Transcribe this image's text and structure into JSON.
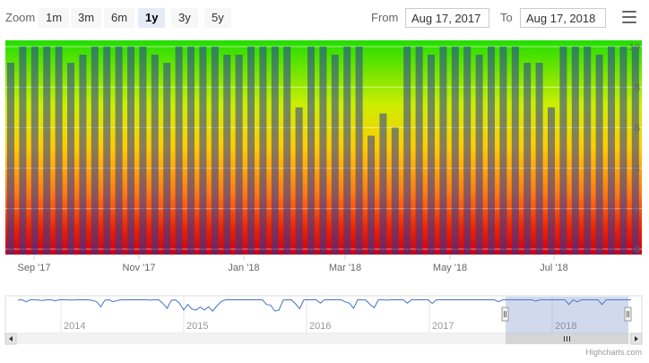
{
  "toolbar": {
    "zoom_label": "Zoom",
    "buttons": [
      "1m",
      "3m",
      "6m",
      "1y",
      "3y",
      "5y"
    ],
    "selected": "1y",
    "from_label": "From",
    "from_value": "Aug 17, 2017",
    "to_label": "To",
    "to_value": "Aug 17, 2018"
  },
  "credits": "Highcharts.com",
  "colors": {
    "bar": "rgba(40,60,160,0.55)",
    "gradient": [
      "#22dd00",
      "#ccee00",
      "#ffcc00",
      "#ff7711",
      "#ee2200",
      "#cc0011"
    ],
    "navigator_line": "#4572c4",
    "navigator_mask": "rgba(102,133,194,0.3)"
  },
  "chart_data": {
    "type": "bar",
    "y_ticks": [
      0,
      2,
      4,
      6,
      8,
      10
    ],
    "ylim": [
      0,
      10
    ],
    "x_ticks": [
      "Sep '17",
      "Nov '17",
      "Jan '18",
      "Mar '18",
      "May '18",
      "Jul '18"
    ],
    "values": [
      9.2,
      10,
      10,
      10,
      10,
      9.2,
      9.6,
      10,
      10,
      10,
      10,
      10,
      9.6,
      9.2,
      10,
      10,
      10,
      10,
      9.6,
      9.6,
      10,
      10,
      10,
      10,
      7.0,
      10,
      10,
      9.6,
      10,
      10,
      5.6,
      6.7,
      6.0,
      10,
      10,
      9.6,
      10,
      10,
      10,
      9.6,
      10,
      10,
      10,
      9.2,
      9.2,
      7.0,
      10,
      10,
      10,
      9.6,
      10,
      10,
      10
    ],
    "navigator": {
      "x_labels": [
        "2014",
        "2015",
        "2016",
        "2017",
        "2018"
      ],
      "series": [
        9.5,
        9.6,
        9.0,
        9.6,
        9.6,
        9.5,
        9.4,
        9.6,
        9.6,
        9.3,
        9.6,
        9.6,
        9.6,
        9.5,
        9.6,
        9.6,
        9.6,
        9.6,
        9.4,
        9.0,
        7.5,
        9.5,
        9.6,
        9.0,
        9.4,
        9.6,
        9.6,
        9.6,
        9.6,
        9.6,
        9.6,
        9.6,
        9.5,
        9.6,
        9.6,
        8.5,
        7.0,
        9.4,
        9.6,
        8.6,
        6.5,
        8.2,
        6.8,
        6.5,
        7.4,
        6.5,
        7.5,
        6.2,
        7.7,
        9.0,
        9.6,
        9.6,
        9.6,
        9.6,
        9.6,
        9.6,
        9.6,
        9.6,
        9.6,
        9.6,
        8.2,
        8.0,
        6.2,
        6.5,
        9.5,
        9.6,
        9.6,
        8.4,
        6.9,
        9.6,
        9.6,
        9.6,
        9.6,
        8.6,
        9.6,
        9.6,
        9.6,
        9.6,
        9.6,
        9.0,
        8.6,
        7.0,
        9.6,
        9.6,
        9.5,
        8.2,
        7.2,
        9.6,
        9.6,
        9.5,
        9.6,
        9.6,
        9.6,
        9.6,
        8.6,
        9.6,
        9.6,
        9.6,
        9.6,
        9.6,
        8.5,
        9.6,
        9.6,
        9.6,
        9.6,
        9.6,
        9.6,
        9.6,
        9.6,
        9.6,
        9.6,
        9.6,
        9.6,
        9.6,
        9.6,
        9.6,
        9.0,
        9.6,
        9.6,
        9.6,
        9.6,
        9.6,
        9.6,
        9.6,
        9.6,
        9.2,
        9.6,
        9.6,
        9.6,
        9.6,
        9.6,
        9.6,
        9.6,
        8.2,
        9.6,
        9.0,
        9.6,
        9.6,
        9.6,
        9.6,
        9.6,
        8.2,
        9.6,
        9.6,
        9.6,
        9.6,
        9.6,
        9.6,
        9.6
      ]
    }
  }
}
